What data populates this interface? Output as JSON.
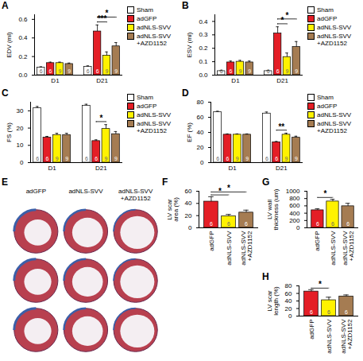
{
  "chart_data": [
    {
      "panel": "A",
      "type": "bar",
      "ylabel": "EDV (ml)",
      "categories": [
        "D1",
        "D21"
      ],
      "ylim": [
        0,
        0.65
      ],
      "yticks": [
        {
          "value": 0,
          "label": "0.0"
        },
        0.2,
        0.4,
        0.6
      ],
      "legend": "right",
      "series": [
        {
          "name": "Sham",
          "color": "#ffffff",
          "values": [
            0.08,
            0.09
          ],
          "errors": [
            0.01,
            0.01
          ],
          "n": [
            6,
            6
          ]
        },
        {
          "name": "adGFP",
          "color": "#e41e26",
          "values": [
            0.13,
            0.47
          ],
          "errors": [
            0.01,
            0.07
          ],
          "n": [
            6,
            6
          ]
        },
        {
          "name": "adNLS-SVV",
          "color": "#fff200",
          "values": [
            0.13,
            0.21
          ],
          "errors": [
            0.01,
            0.04
          ],
          "n": [
            9,
            9
          ]
        },
        {
          "name": "adNLS-SVV +AZD1152",
          "color": "#a57c52",
          "values": [
            0.12,
            0.31
          ],
          "errors": [
            0.01,
            0.04
          ],
          "n": [
            9,
            9
          ]
        }
      ],
      "annotations": [
        {
          "category": "D21",
          "from": "adGFP",
          "to": "adNLS-SVV",
          "label": "***"
        },
        {
          "category": "D21",
          "from": "adGFP",
          "to": "adNLS-SVV +AZD1152",
          "label": "*"
        }
      ]
    },
    {
      "panel": "B",
      "type": "bar",
      "ylabel": "ESV (ml)",
      "categories": [
        "D1",
        "D21"
      ],
      "ylim": [
        0,
        0.45
      ],
      "yticks": [
        {
          "value": 0,
          "label": "0.0"
        },
        0.1,
        0.2,
        0.3,
        0.4
      ],
      "legend": "right",
      "series": [
        {
          "name": "Sham",
          "color": "#ffffff",
          "values": [
            0.03,
            0.03
          ],
          "errors": [
            0.005,
            0.005
          ],
          "n": [
            6,
            6
          ]
        },
        {
          "name": "adGFP",
          "color": "#e41e26",
          "values": [
            0.095,
            0.31
          ],
          "errors": [
            0.01,
            0.05
          ],
          "n": [
            6,
            6
          ]
        },
        {
          "name": "adNLS-SVV",
          "color": "#fff200",
          "values": [
            0.1,
            0.135
          ],
          "errors": [
            0.01,
            0.03
          ],
          "n": [
            9,
            9
          ]
        },
        {
          "name": "adNLS-SVV +AZD1152",
          "color": "#a57c52",
          "values": [
            0.095,
            0.21
          ],
          "errors": [
            0.01,
            0.04
          ],
          "n": [
            9,
            9
          ]
        }
      ],
      "annotations": [
        {
          "category": "D21",
          "from": "adGFP",
          "to": "adNLS-SVV",
          "label": "*"
        },
        {
          "category": "D21",
          "from": "adGFP",
          "to": "adNLS-SVV +AZD1152",
          "label": "*"
        }
      ]
    },
    {
      "panel": "C",
      "type": "bar",
      "ylabel": "FS (%)",
      "categories": [
        "D1",
        "D21"
      ],
      "ylim": [
        0,
        35
      ],
      "yticks": [
        0,
        10,
        20,
        30
      ],
      "legend": "right",
      "series": [
        {
          "name": "Sham",
          "color": "#ffffff",
          "values": [
            31.5,
            33
          ],
          "errors": [
            1,
            0.8
          ],
          "n": [
            6,
            6
          ]
        },
        {
          "name": "adGFP",
          "color": "#e41e26",
          "values": [
            14.5,
            12.5
          ],
          "errors": [
            0.7,
            0.7
          ],
          "n": [
            6,
            6
          ]
        },
        {
          "name": "adNLS-SVV",
          "color": "#fff200",
          "values": [
            16,
            19.5
          ],
          "errors": [
            1,
            2.5
          ],
          "n": [
            9,
            9
          ]
        },
        {
          "name": "adNLS-SVV +AZD1152",
          "color": "#a57c52",
          "values": [
            16,
            16.5
          ],
          "errors": [
            1,
            1.5
          ],
          "n": [
            9,
            9
          ]
        }
      ],
      "annotations": [
        {
          "category": "D21",
          "from": "adGFP",
          "to": "adNLS-SVV",
          "label": "*"
        }
      ]
    },
    {
      "panel": "D",
      "type": "bar",
      "ylabel": "EF (%)",
      "categories": [
        "D1",
        "D21"
      ],
      "ylim": [
        0,
        80
      ],
      "yticks": [
        0,
        20,
        40,
        60,
        80
      ],
      "legend": "right",
      "series": [
        {
          "name": "Sham",
          "color": "#ffffff",
          "values": [
            67,
            65
          ],
          "errors": [
            1,
            2
          ],
          "n": [
            6,
            6
          ]
        },
        {
          "name": "adGFP",
          "color": "#e41e26",
          "values": [
            37,
            27
          ],
          "errors": [
            1,
            1
          ],
          "n": [
            6,
            6
          ]
        },
        {
          "name": "adNLS-SVV",
          "color": "#fff200",
          "values": [
            37,
            37
          ],
          "errors": [
            1,
            2
          ],
          "n": [
            9,
            9
          ]
        },
        {
          "name": "adNLS-SVV +AZD1152",
          "color": "#a57c52",
          "values": [
            37,
            33
          ],
          "errors": [
            1,
            2
          ],
          "n": [
            9,
            9
          ]
        }
      ],
      "annotations": [
        {
          "category": "D21",
          "from": "adGFP",
          "to": "adNLS-SVV",
          "label": "**"
        }
      ]
    },
    {
      "panel": "F",
      "type": "bar",
      "ylabel": "LV scar area (%)",
      "categories": [
        "adGFP",
        "adNLS-SVV",
        "adNLS-SVV +AZD1152"
      ],
      "values": [
        43,
        19,
        25
      ],
      "errors": [
        8,
        3,
        4
      ],
      "n": [
        6,
        6,
        6
      ],
      "colors": [
        "#e41e26",
        "#fff200",
        "#a57c52"
      ],
      "ylim": [
        0,
        60
      ],
      "yticks": [
        0,
        20,
        40,
        60
      ],
      "annotations": [
        {
          "from": "adGFP",
          "to": "adNLS-SVV",
          "label": "*"
        },
        {
          "from": "adGFP",
          "to": "adNLS-SVV +AZD1152",
          "label": "*"
        }
      ]
    },
    {
      "panel": "G",
      "type": "bar",
      "ylabel": "LV wall thickness (um)",
      "categories": [
        "adGFP",
        "adNLS-SVV",
        "adNLS-SVV +AZD1152"
      ],
      "values": [
        480,
        720,
        590
      ],
      "errors": [
        40,
        60,
        80
      ],
      "n": [
        6,
        6,
        6
      ],
      "colors": [
        "#e41e26",
        "#fff200",
        "#a57c52"
      ],
      "ylim": [
        0,
        1000
      ],
      "yticks": [
        0,
        200,
        400,
        600,
        800,
        1000
      ],
      "annotations": [
        {
          "from": "adGFP",
          "to": "adNLS-SVV",
          "label": "*"
        }
      ]
    },
    {
      "panel": "H",
      "type": "bar",
      "ylabel": "LV scar length (%)",
      "categories": [
        "adGFP",
        "adNLS-SVV",
        "adNLS-SVV +AZD1152"
      ],
      "values": [
        65,
        42,
        52
      ],
      "errors": [
        5,
        8,
        4
      ],
      "n": [
        6,
        6,
        6
      ],
      "colors": [
        "#e41e26",
        "#fff200",
        "#a57c52"
      ],
      "ylim": [
        0,
        80
      ],
      "yticks": [
        0,
        20,
        40,
        60,
        80
      ],
      "annotations": [
        {
          "from": "adGFP",
          "to": "adNLS-SVV",
          "label": "*"
        }
      ]
    }
  ],
  "image_panel": {
    "panel": "E",
    "columns": [
      "adGFP",
      "adNLS-SVV",
      "adNLS-SVV +AZD1152"
    ]
  }
}
